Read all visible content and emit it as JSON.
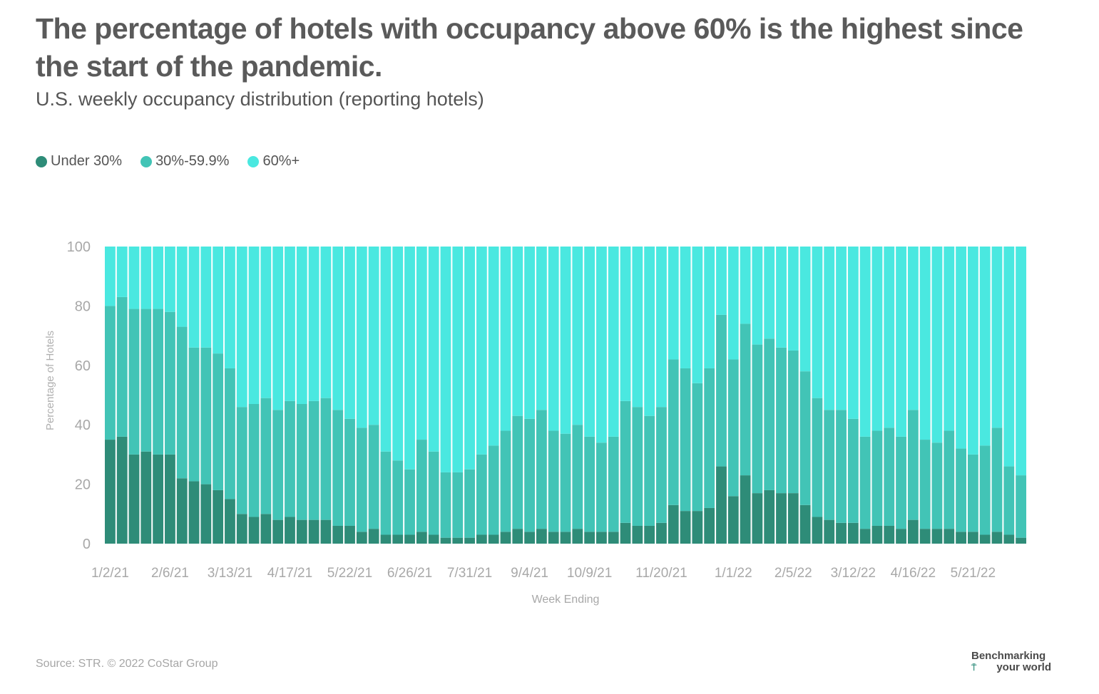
{
  "header": {
    "title": "The percentage of hotels with occupancy above 60% is the highest since the start of the pandemic.",
    "subtitle": "U.S. weekly occupancy distribution (reporting hotels)"
  },
  "legend": [
    {
      "label": "Under 30%",
      "color": "#2e8c78"
    },
    {
      "label": "30%-59.9%",
      "color": "#42c4b6"
    },
    {
      "label": "60%+",
      "color": "#4ae8e0"
    }
  ],
  "footer": {
    "source": "Source: STR. © 2022 CoStar Group",
    "brand_line1": "Benchmarking",
    "brand_line2": "your world",
    "brand_mark": "⍑"
  },
  "chart_data": {
    "type": "bar",
    "stacked": true,
    "xlabel": "Week Ending",
    "ylabel": "Percentage of Hotels",
    "ylim": [
      0,
      100
    ],
    "yticks": [
      0,
      20,
      40,
      60,
      80,
      100
    ],
    "xticks": [
      "1/2/21",
      "2/6/21",
      "3/13/21",
      "4/17/21",
      "5/22/21",
      "6/26/21",
      "7/31/21",
      "9/4/21",
      "10/9/21",
      "11/20/21",
      "1/1/22",
      "2/5/22",
      "3/12/22",
      "4/16/22",
      "5/21/22"
    ],
    "xtick_week_index": [
      0,
      5,
      10,
      15,
      20,
      25,
      30,
      35,
      40,
      46,
      52,
      57,
      62,
      67,
      72
    ],
    "weeks": 77,
    "series": [
      {
        "name": "Under 30%",
        "color": "#2e8c78",
        "values": [
          35,
          36,
          30,
          31,
          30,
          30,
          22,
          21,
          20,
          18,
          15,
          10,
          9,
          10,
          8,
          9,
          8,
          8,
          8,
          6,
          6,
          4,
          5,
          3,
          3,
          3,
          4,
          3,
          2,
          2,
          2,
          3,
          3,
          4,
          5,
          4,
          5,
          4,
          4,
          5,
          4,
          4,
          4,
          7,
          6,
          6,
          7,
          13,
          11,
          11,
          12,
          26,
          16,
          23,
          17,
          18,
          17,
          17,
          13,
          9,
          8,
          7,
          7,
          5,
          6,
          6,
          5,
          8,
          5,
          5,
          5,
          4,
          4,
          3,
          4,
          3,
          2
        ]
      },
      {
        "name": "30%-59.9%",
        "color": "#42c4b6",
        "values": [
          45,
          47,
          49,
          48,
          49,
          48,
          51,
          45,
          46,
          46,
          44,
          36,
          38,
          39,
          37,
          39,
          39,
          40,
          41,
          39,
          36,
          35,
          35,
          28,
          25,
          22,
          31,
          28,
          22,
          22,
          23,
          27,
          30,
          34,
          38,
          38,
          40,
          34,
          33,
          35,
          32,
          30,
          32,
          41,
          40,
          37,
          39,
          49,
          48,
          43,
          47,
          51,
          46,
          51,
          50,
          51,
          49,
          48,
          45,
          40,
          37,
          38,
          35,
          31,
          32,
          33,
          31,
          37,
          30,
          29,
          33,
          28,
          26,
          30,
          35,
          23,
          21
        ]
      },
      {
        "name": "60%+",
        "color": "#4ae8e0",
        "values": [
          20,
          17,
          21,
          21,
          22,
          22,
          27,
          34,
          34,
          37,
          41,
          54,
          53,
          51,
          56,
          52,
          53,
          52,
          51,
          55,
          58,
          61,
          60,
          69,
          72,
          75,
          65,
          69,
          76,
          76,
          75,
          70,
          67,
          62,
          57,
          58,
          55,
          62,
          63,
          60,
          64,
          66,
          64,
          52,
          54,
          57,
          54,
          38,
          41,
          46,
          41,
          23,
          38,
          26,
          33,
          31,
          34,
          35,
          42,
          51,
          55,
          55,
          58,
          64,
          62,
          61,
          64,
          55,
          65,
          66,
          62,
          68,
          70,
          67,
          61,
          74,
          77
        ]
      }
    ]
  }
}
